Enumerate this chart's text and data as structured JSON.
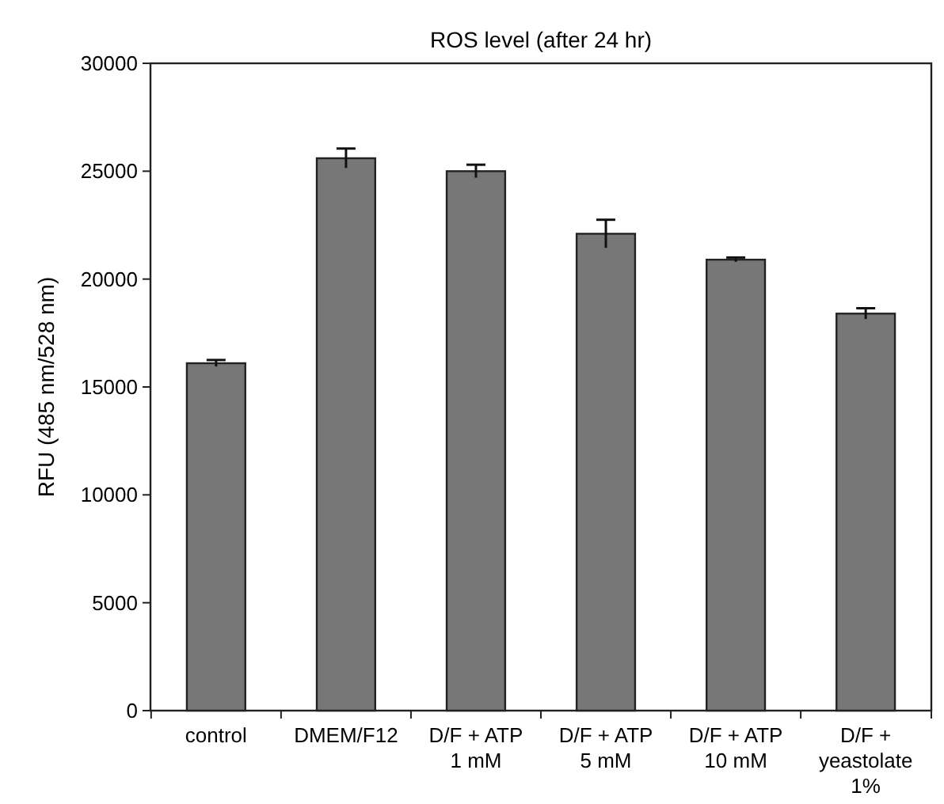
{
  "chart_data": {
    "type": "bar",
    "title": "ROS level (after 24 hr)",
    "ylabel": "RFU (485 nm/528 nm)",
    "categories": [
      "control",
      "DMEM/F12",
      "D/F + ATP\n1 mM",
      "D/F + ATP\n5 mM",
      "D/F + ATP\n10 mM",
      "D/F +\nyeastolate\n1%"
    ],
    "values": [
      16100,
      25600,
      25000,
      22100,
      20900,
      18400
    ],
    "errors": [
      150,
      450,
      300,
      650,
      100,
      250
    ],
    "color": "#777777",
    "ylim": [
      0,
      30000
    ],
    "yticks": [
      0,
      5000,
      10000,
      15000,
      20000,
      25000,
      30000
    ],
    "grid": false
  }
}
